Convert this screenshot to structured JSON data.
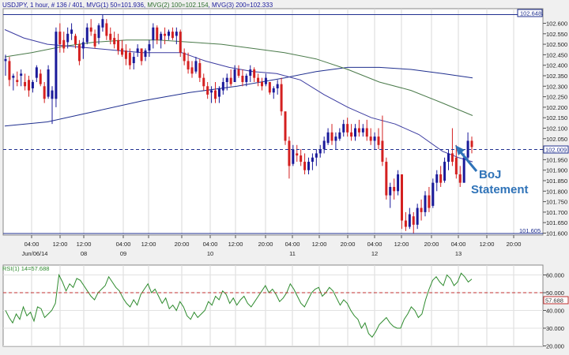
{
  "header": {
    "symbol": "USDJPY",
    "timeframe": "1 hour",
    "counter": "# 136 / 401",
    "ma1_label": "MVG(1) 50=101.936",
    "ma2_label": "MVG(2) 100=102.154",
    "ma3_label": "MVG(3) 200=102.333"
  },
  "price_scale": {
    "ticks": [
      "102.600",
      "102.550",
      "102.500",
      "102.450",
      "102.400",
      "102.350",
      "102.300",
      "102.250",
      "102.200",
      "102.150",
      "102.100",
      "102.050",
      "102.000",
      "101.950",
      "101.900",
      "101.850",
      "101.800",
      "101.750",
      "101.700",
      "101.650",
      "101.600"
    ],
    "high_badge": "102.648",
    "current_badge": "102.009",
    "low_badge": "101.605"
  },
  "time_axis": {
    "hour_labels": [
      {
        "text": "04:00"
      },
      {
        "text": "12:00"
      },
      {
        "text": "12:00"
      },
      {
        "text": "04:00"
      },
      {
        "text": "12:00"
      },
      {
        "text": "20:00"
      },
      {
        "text": "04:00"
      },
      {
        "text": "12:00"
      },
      {
        "text": "20:00"
      },
      {
        "text": "04:00"
      },
      {
        "text": "12:00"
      },
      {
        "text": "20:00"
      },
      {
        "text": "04:00"
      },
      {
        "text": "12:00"
      },
      {
        "text": "20:00"
      },
      {
        "text": "04:00"
      },
      {
        "text": "12:00"
      },
      {
        "text": "20:00"
      }
    ],
    "date_labels": [
      "Jun/06/14",
      "08",
      "09",
      "10",
      "11",
      "12",
      "13"
    ]
  },
  "annotation": {
    "line1": "BoJ",
    "line2": "Statement"
  },
  "rsi": {
    "label": "RSI(1) 14=57.688",
    "ticks": [
      "60.000",
      "50.000",
      "40.000",
      "30.000",
      "20.000"
    ],
    "current_badge": "57.688"
  },
  "colors": {
    "bull": "#1a1a9a",
    "bear": "#d42020",
    "ma50": "#3a3aa0",
    "ma100": "#4a7a4a",
    "ma200": "#1f2f8f",
    "rsi": "#2e8b2e",
    "badge": "#1f2f8f"
  },
  "chart_data": [
    {
      "type": "candlestick",
      "title": "USDJPY , 1 hour",
      "ylim": [
        101.6,
        102.66
      ],
      "series": [
        {
          "name": "MVG(1) 50",
          "last": 101.936
        },
        {
          "name": "MVG(2) 100",
          "last": 102.154
        },
        {
          "name": "MVG(3) 200",
          "last": 102.333
        }
      ],
      "high": 102.648,
      "low": 101.605,
      "current": 102.009
    },
    {
      "type": "line",
      "title": "RSI(1) 14",
      "ylim": [
        20,
        65
      ],
      "reference_lines": [
        50
      ],
      "last": 57.688
    }
  ]
}
